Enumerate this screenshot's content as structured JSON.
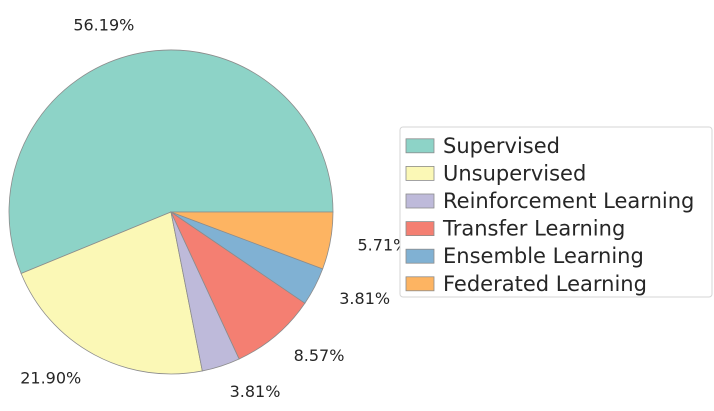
{
  "chart_data": {
    "type": "pie",
    "title": "",
    "categories": [
      "Supervised",
      "Unsupervised",
      "Reinforcement Learning",
      "Transfer Learning",
      "Ensemble Learning",
      "Federated Learning"
    ],
    "values": [
      56.19,
      21.9,
      3.81,
      8.57,
      3.81,
      5.71
    ],
    "labels": [
      "56.19%",
      "21.90%",
      "3.81%",
      "8.57%",
      "3.81%",
      "5.71%"
    ],
    "colors": [
      "#8dd3c7",
      "#fbf8b6",
      "#bebada",
      "#f47f72",
      "#80b1d3",
      "#fdb462"
    ],
    "edge_color": "#8c8c8c",
    "start_angle_deg": 0,
    "direction": "counterclockwise",
    "legend_position": "right"
  }
}
